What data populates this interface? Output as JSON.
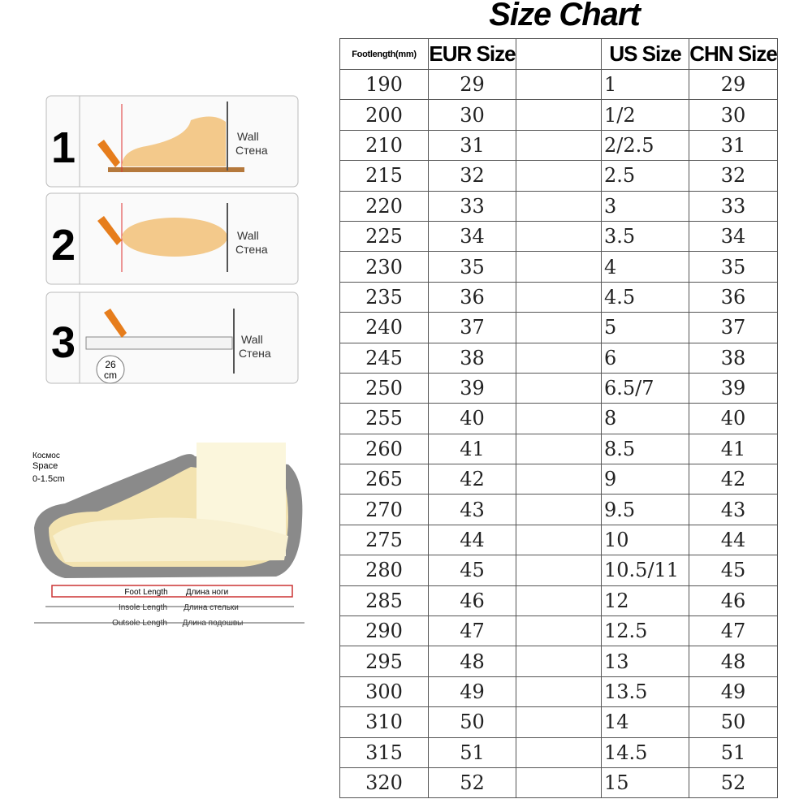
{
  "title": "Size Chart",
  "steps": [
    {
      "number": "1",
      "wall": "Wall",
      "wall_ru": "Стена"
    },
    {
      "number": "2",
      "wall": "Wall",
      "wall_ru": "Стена"
    },
    {
      "number": "3",
      "wall": "Wall",
      "wall_ru": "Стена",
      "measure": "26",
      "unit": "cm"
    }
  ],
  "diagram": {
    "space_ru": "Космос",
    "space": "Space",
    "space_range": "0-1.5cm",
    "foot_length": "Foot Length",
    "foot_length_ru": "Длина ноги",
    "insole_length": "Insole Length",
    "insole_length_ru": "Длина стельки",
    "outsole_length": "Outsole Length",
    "outsole_length_ru": "Длина подошвы"
  },
  "table": {
    "headers": [
      "Footlength(mm)",
      "EUR Size",
      "US Size",
      "CHN Size"
    ],
    "rows": [
      [
        190,
        29,
        "1",
        29
      ],
      [
        200,
        30,
        "1/2",
        30
      ],
      [
        210,
        31,
        "2/2.5",
        31
      ],
      [
        215,
        32,
        "2.5",
        32
      ],
      [
        220,
        33,
        "3",
        33
      ],
      [
        225,
        34,
        "3.5",
        34
      ],
      [
        230,
        35,
        "4",
        35
      ],
      [
        235,
        36,
        "4.5",
        36
      ],
      [
        240,
        37,
        "5",
        37
      ],
      [
        245,
        38,
        "6",
        38
      ],
      [
        250,
        39,
        "6.5/7",
        39
      ],
      [
        255,
        40,
        "8",
        40
      ],
      [
        260,
        41,
        "8.5",
        41
      ],
      [
        265,
        42,
        "9",
        42
      ],
      [
        270,
        43,
        "9.5",
        43
      ],
      [
        275,
        44,
        "10",
        44
      ],
      [
        280,
        45,
        "10.5/11",
        45
      ],
      [
        285,
        46,
        "12",
        46
      ],
      [
        290,
        47,
        "12.5",
        47
      ],
      [
        295,
        48,
        "13",
        48
      ],
      [
        300,
        49,
        "13.5",
        49
      ],
      [
        310,
        50,
        "14",
        50
      ],
      [
        315,
        51,
        "14.5",
        51
      ],
      [
        320,
        52,
        "15",
        52
      ]
    ]
  }
}
